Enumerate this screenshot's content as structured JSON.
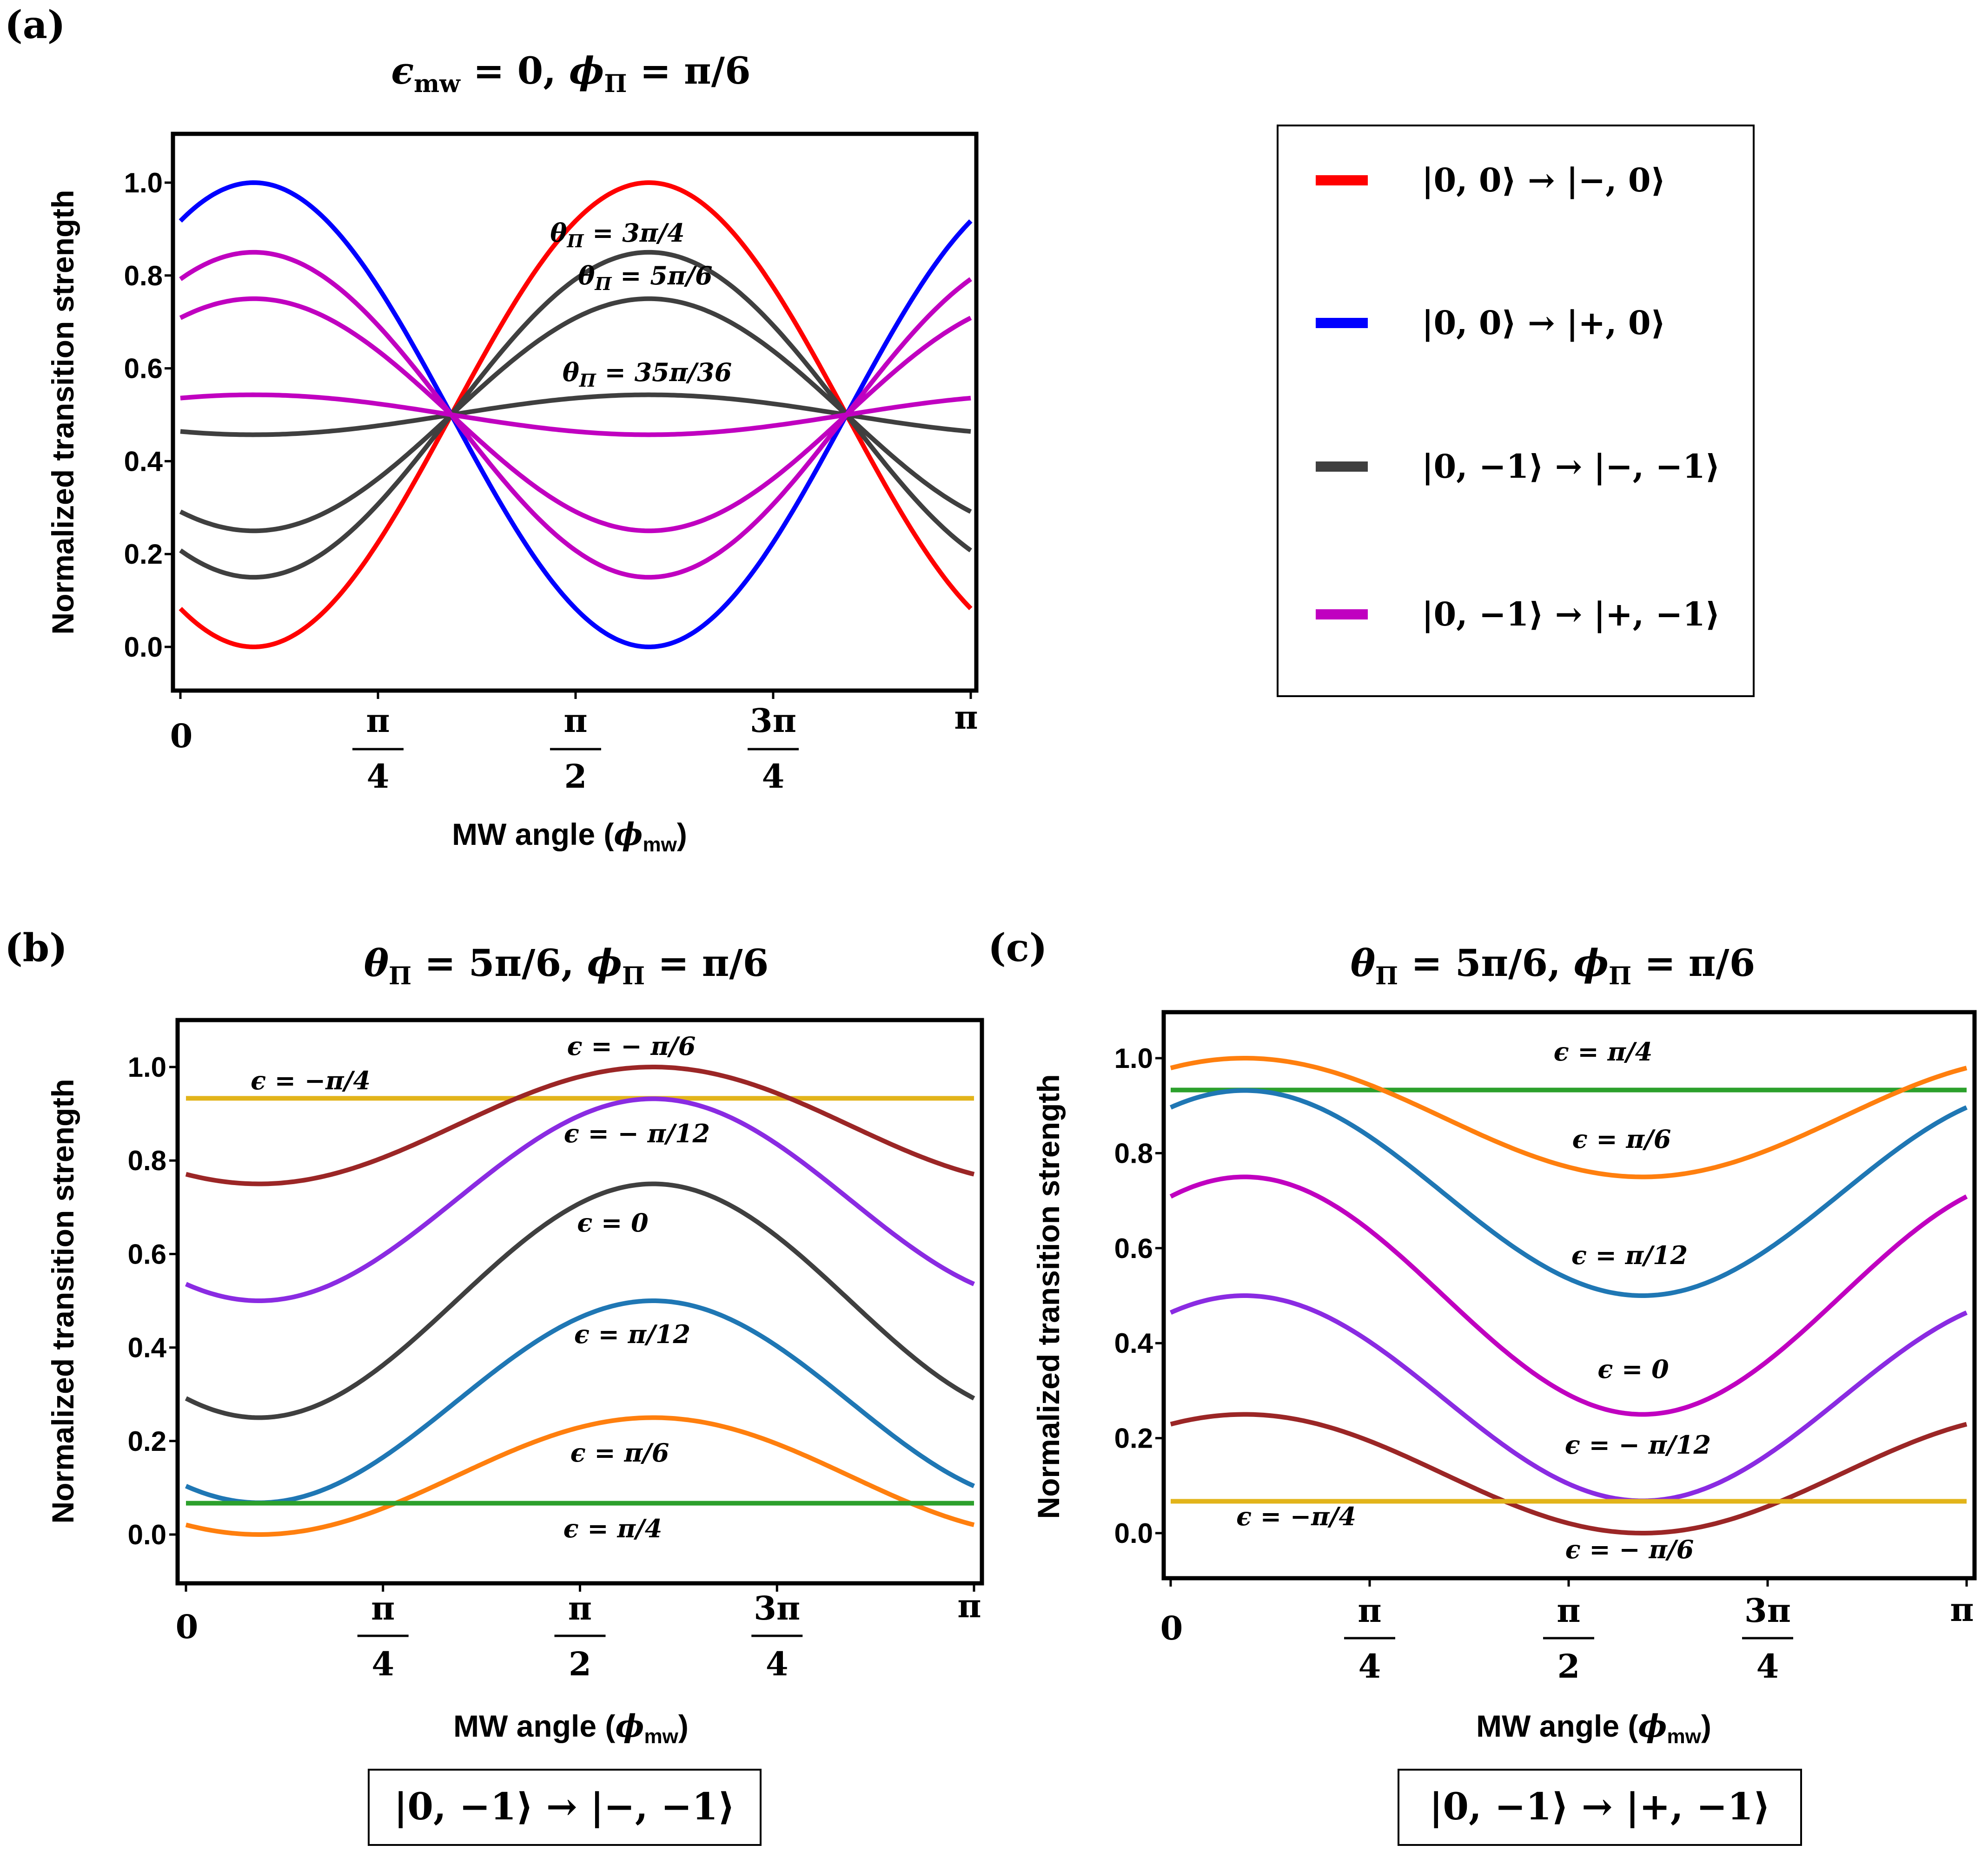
{
  "colors": {
    "red": "#ff0000",
    "blue": "#0000ff",
    "dark_gray": "#3f3f3f",
    "magenta": "#c000c0",
    "brown": "#9b2626",
    "gold": "#e2b41a",
    "violet": "#8a2be2",
    "steel_blue": "#1f77b4",
    "orange": "#ff7f0e",
    "green": "#2ca02c"
  },
  "chart_data": [
    {
      "panel": "(a)",
      "type": "line",
      "title": "ϵmw = 0, ϕΠ = π/6",
      "xlabel": "MW angle (ϕmw)",
      "ylabel": "Normalized transition strength",
      "xlim": [
        0,
        3.1416
      ],
      "ylim": [
        -0.1,
        1.1
      ],
      "yticks": [
        "0.0",
        "0.2",
        "0.4",
        "0.6",
        "0.8",
        "1.0"
      ],
      "xticks": [
        {
          "num": "0",
          "den": ""
        },
        {
          "num": "π",
          "den": "4"
        },
        {
          "num": "π",
          "den": "2"
        },
        {
          "num": "3π",
          "den": "4"
        },
        {
          "num": "π",
          "den": ""
        }
      ],
      "series": [
        {
          "name": "red",
          "color": "#ff0000",
          "mean": 0.5,
          "amp": 0.5,
          "sign": -1
        },
        {
          "name": "blue",
          "color": "#0000ff",
          "mean": 0.5,
          "amp": 0.5,
          "sign": 1
        },
        {
          "name": "gray θΠ = 3π/4",
          "color": "#3f3f3f",
          "mean": 0.5,
          "amp": 0.35,
          "sign": -1
        },
        {
          "name": "gray θΠ = 5π/6",
          "color": "#3f3f3f",
          "mean": 0.5,
          "amp": 0.25,
          "sign": -1
        },
        {
          "name": "gray θΠ = 35π/36",
          "color": "#3f3f3f",
          "mean": 0.5,
          "amp": 0.043,
          "sign": -1
        },
        {
          "name": "magenta θΠ = 3π/4",
          "color": "#c000c0",
          "mean": 0.5,
          "amp": 0.35,
          "sign": 1
        },
        {
          "name": "magenta θΠ = 5π/6",
          "color": "#c000c0",
          "mean": 0.5,
          "amp": 0.25,
          "sign": 1
        },
        {
          "name": "magenta θΠ = 35π/36",
          "color": "#c000c0",
          "mean": 0.5,
          "amp": 0.043,
          "sign": 1
        }
      ],
      "annotations": [
        "θΠ = 3π/4",
        "θΠ = 5π/6",
        "θΠ = 35π/36"
      ],
      "legend": [
        {
          "label": "|0, 0⟩ → |−, 0⟩",
          "color": "#ff0000"
        },
        {
          "label": "|0, 0⟩ → |+, 0⟩",
          "color": "#0000ff"
        },
        {
          "label": "|0, −1⟩ →  |−, −1⟩",
          "color": "#3f3f3f"
        },
        {
          "label": "|0, −1⟩ → |+, −1⟩",
          "color": "#c000c0"
        }
      ]
    },
    {
      "panel": "(b)",
      "type": "line",
      "title": "θΠ = 5π/6, ϕΠ = π/6",
      "xlabel": "MW angle (ϕmw)",
      "ylabel": "Normalized transition strength",
      "xlim": [
        0,
        3.1416
      ],
      "ylim": [
        -0.1,
        1.1
      ],
      "yticks": [
        "0.0",
        "0.2",
        "0.4",
        "0.6",
        "0.8",
        "1.0"
      ],
      "xticks": [
        {
          "num": "0",
          "den": ""
        },
        {
          "num": "π",
          "den": "4"
        },
        {
          "num": "π",
          "den": "2"
        },
        {
          "num": "3π",
          "den": "4"
        },
        {
          "num": "π",
          "den": ""
        }
      ],
      "series": [
        {
          "name": "ϵ = −π/4",
          "color": "#e2b41a",
          "mean": 0.933,
          "amp": 0,
          "sign": 1
        },
        {
          "name": "ϵ = − π/6",
          "color": "#9b2626",
          "mean": 0.875,
          "amp": 0.125,
          "sign": -1
        },
        {
          "name": "ϵ = − π/12",
          "color": "#8a2be2",
          "mean": 0.716,
          "amp": 0.216,
          "sign": -1
        },
        {
          "name": "ϵ = 0",
          "color": "#3f3f3f",
          "mean": 0.5,
          "amp": 0.25,
          "sign": -1
        },
        {
          "name": "ϵ = π/12",
          "color": "#1f77b4",
          "mean": 0.284,
          "amp": 0.216,
          "sign": -1
        },
        {
          "name": "ϵ = π/6",
          "color": "#ff7f0e",
          "mean": 0.125,
          "amp": 0.125,
          "sign": -1
        },
        {
          "name": "ϵ = π/4",
          "color": "#2ca02c",
          "mean": 0.067,
          "amp": 0,
          "sign": 1
        }
      ],
      "annotations": [
        "ϵ = −π/4",
        "ϵ = − π/6",
        "ϵ = − π/12",
        "ϵ = 0",
        "ϵ = π/12",
        "ϵ = π/6",
        "ϵ = π/4"
      ],
      "caption": "|0, −1⟩ → |−, −1⟩"
    },
    {
      "panel": "(c)",
      "type": "line",
      "title": "θΠ = 5π/6, ϕΠ = π/6",
      "xlabel": "MW angle (ϕmw)",
      "ylabel": "Normalized transition strength",
      "xlim": [
        0,
        3.1416
      ],
      "ylim": [
        -0.1,
        1.1
      ],
      "yticks": [
        "0.0",
        "0.2",
        "0.4",
        "0.6",
        "0.8",
        "1.0"
      ],
      "xticks": [
        {
          "num": "0",
          "den": ""
        },
        {
          "num": "π",
          "den": "4"
        },
        {
          "num": "π",
          "den": "2"
        },
        {
          "num": "3π",
          "den": "4"
        },
        {
          "num": "π",
          "den": ""
        }
      ],
      "series": [
        {
          "name": "ϵ = π/4",
          "color": "#2ca02c",
          "mean": 0.933,
          "amp": 0,
          "sign": 1
        },
        {
          "name": "ϵ = π/6",
          "color": "#ff7f0e",
          "mean": 0.875,
          "amp": 0.125,
          "sign": 1
        },
        {
          "name": "ϵ = π/12",
          "color": "#1f77b4",
          "mean": 0.716,
          "amp": 0.216,
          "sign": 1
        },
        {
          "name": "ϵ = 0",
          "color": "#c000c0",
          "mean": 0.5,
          "amp": 0.25,
          "sign": 1
        },
        {
          "name": "ϵ = − π/12",
          "color": "#8a2be2",
          "mean": 0.284,
          "amp": 0.216,
          "sign": 1
        },
        {
          "name": "ϵ = − π/6",
          "color": "#9b2626",
          "mean": 0.125,
          "amp": 0.125,
          "sign": 1
        },
        {
          "name": "ϵ = −π/4",
          "color": "#e2b41a",
          "mean": 0.067,
          "amp": 0,
          "sign": 1
        }
      ],
      "annotations": [
        "ϵ = π/4",
        "ϵ = π/6",
        "ϵ = π/12",
        "ϵ = 0",
        "ϵ = − π/12",
        "ϵ = −π/4",
        "ϵ = − π/6"
      ],
      "caption": "|0, −1⟩ → |+, −1⟩"
    }
  ]
}
